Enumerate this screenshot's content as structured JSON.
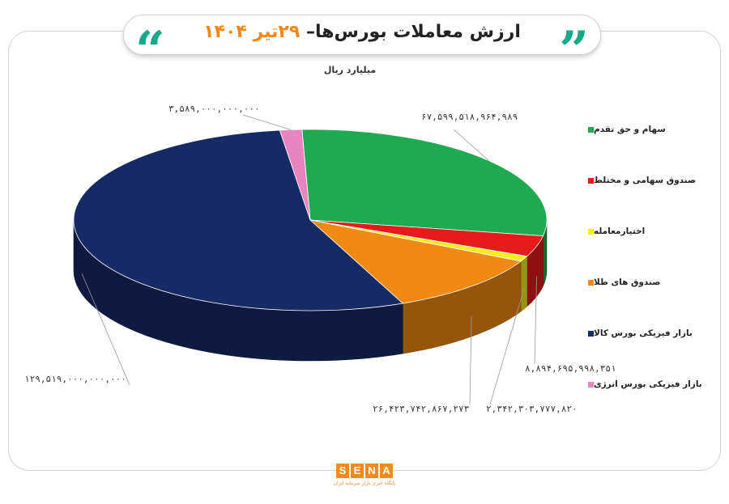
{
  "header": {
    "title_main": "ارزش معاملات بورس‌ها–",
    "title_date": "۲۹تیر ۱۴۰۴",
    "unit": "میلیارد ریال",
    "accent_color": "#19a889",
    "date_color": "#f08a14"
  },
  "chart_data": {
    "type": "pie",
    "title": "ارزش معاملات بورس‌ها– ۲۹تیر ۱۴۰۴",
    "unit": "میلیارد ریال",
    "legend_position": "right",
    "series": [
      {
        "name": "سهام و حق تقدم",
        "value": 67599518964989,
        "label": "۶۷,۵۹۹,۵۱۸,۹۶۴,۹۸۹",
        "color": "#1faa52"
      },
      {
        "name": "صندوق سهامی و مختلط",
        "value": 8894695998351,
        "label": "۸,۸۹۴,۶۹۵,۹۹۸,۳۵۱",
        "color": "#e61a1a"
      },
      {
        "name": "اختیارمعامله",
        "value": 2342303777820,
        "label": "۲,۳۴۲,۳۰۳,۷۷۷,۸۲۰",
        "color": "#f5ee1e"
      },
      {
        "name": "صندوق های طلا",
        "value": 26423742867273,
        "label": "۲۶,۴۲۳,۷۴۲,۸۶۷,۲۷۳",
        "color": "#f08a14"
      },
      {
        "name": "بازار فیزیکی بورس کالا",
        "value": 129519000000000,
        "label": "۱۲۹,۵۱۹,۰۰۰,۰۰۰,۰۰۰",
        "color": "#162a66"
      },
      {
        "name": "بازار فیزیکی بورس انرژی",
        "value": 3589000000000,
        "label": "۳,۵۸۹,۰۰۰,۰۰۰,۰۰۰",
        "color": "#e884c0"
      }
    ]
  },
  "logo": {
    "letters": [
      "S",
      "E",
      "N",
      "A"
    ],
    "subtitle": "پایگاه خبری بازار سرمایه ایران",
    "color": "#f28a1e"
  }
}
